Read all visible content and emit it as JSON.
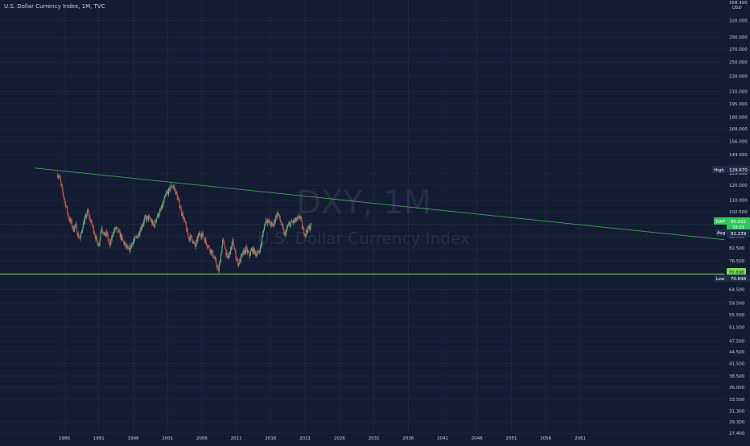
{
  "header": {
    "title": "U.S. Dollar Currency Index, 1M, TVC"
  },
  "watermark": {
    "symbol": "DXY, 1M",
    "name": "U.S. Dollar Currency Index"
  },
  "price_scale": {
    "top_labels": [
      "358.490",
      "USD"
    ],
    "unit": "USD",
    "type": "log"
  },
  "markers": {
    "high": {
      "label": "High",
      "value": "129.670"
    },
    "symbol": {
      "label": "DXY",
      "value": "95.022",
      "sub": "16:23"
    },
    "avg": {
      "label": "Avg",
      "value": "92.239"
    },
    "low": {
      "label": "Low",
      "value": "70.698"
    },
    "low_line": {
      "value": "70.698"
    }
  },
  "colors": {
    "background": "#131c33",
    "grid": "#1f2a45",
    "text": "#c9cedb",
    "trendline": "#46a35c",
    "support_line": "#7cdc57",
    "candle_up": "#5fae88",
    "candle_down": "#d4504e",
    "symbol_badge": "#2fc95a",
    "label_badge": "#1f2b48"
  },
  "chart_data": {
    "type": "candlestick",
    "title": "U.S. Dollar Currency Index, 1M, TVC",
    "x_ticks": [
      "1986",
      "1991",
      "1996",
      "2001",
      "2006",
      "2011",
      "2016",
      "2021",
      "2026",
      "2031",
      "2036",
      "2041",
      "2046",
      "2051",
      "2056",
      "2061"
    ],
    "x_range": [
      1983,
      2084
    ],
    "y_ticks": [
      "27.400",
      "29.300",
      "31.300",
      "33.500",
      "36.000",
      "38.500",
      "41.500",
      "44.500",
      "47.500",
      "51.500",
      "55.500",
      "59.500",
      "64.500",
      "70.698",
      "76.500",
      "82.500",
      "88.500",
      "102.500",
      "110.000",
      "120.000",
      "129.000",
      "144.000",
      "156.000",
      "168.000",
      "180.000",
      "195.000",
      "210.000",
      "230.000",
      "250.000",
      "270.000",
      "290.000",
      "320.000"
    ],
    "y_range": [
      27.4,
      358.49
    ],
    "y_scale": "log",
    "grid": true,
    "close_series": [
      [
        1985.0,
        128
      ],
      [
        1985.3,
        126
      ],
      [
        1985.6,
        118
      ],
      [
        1986.0,
        110
      ],
      [
        1986.3,
        105
      ],
      [
        1986.6,
        99
      ],
      [
        1987.0,
        96
      ],
      [
        1987.3,
        92
      ],
      [
        1987.6,
        95
      ],
      [
        1988.0,
        89
      ],
      [
        1988.3,
        87
      ],
      [
        1988.7,
        95
      ],
      [
        1989.0,
        98
      ],
      [
        1989.4,
        103
      ],
      [
        1989.8,
        97
      ],
      [
        1990.2,
        93
      ],
      [
        1990.6,
        87
      ],
      [
        1991.0,
        84
      ],
      [
        1991.4,
        94
      ],
      [
        1991.8,
        89
      ],
      [
        1992.2,
        90
      ],
      [
        1992.6,
        83
      ],
      [
        1993.0,
        90
      ],
      [
        1993.5,
        93
      ],
      [
        1994.0,
        90
      ],
      [
        1994.5,
        86
      ],
      [
        1995.0,
        83
      ],
      [
        1995.4,
        81
      ],
      [
        1995.8,
        85
      ],
      [
        1996.3,
        87
      ],
      [
        1996.8,
        90
      ],
      [
        1997.2,
        94
      ],
      [
        1997.7,
        98
      ],
      [
        1998.2,
        99
      ],
      [
        1998.6,
        97
      ],
      [
        1999.0,
        94
      ],
      [
        1999.5,
        100
      ],
      [
        2000.0,
        103
      ],
      [
        2000.4,
        108
      ],
      [
        2000.8,
        114
      ],
      [
        2001.2,
        116
      ],
      [
        2001.6,
        120
      ],
      [
        2002.0,
        118
      ],
      [
        2002.4,
        112
      ],
      [
        2002.8,
        106
      ],
      [
        2003.2,
        100
      ],
      [
        2003.6,
        95
      ],
      [
        2004.0,
        88
      ],
      [
        2004.5,
        88
      ],
      [
        2005.0,
        83
      ],
      [
        2005.5,
        89
      ],
      [
        2006.0,
        90
      ],
      [
        2006.5,
        86
      ],
      [
        2007.0,
        83
      ],
      [
        2007.5,
        80
      ],
      [
        2008.0,
        76
      ],
      [
        2008.4,
        72
      ],
      [
        2008.7,
        78
      ],
      [
        2009.0,
        86
      ],
      [
        2009.3,
        84
      ],
      [
        2009.7,
        77
      ],
      [
        2010.2,
        82
      ],
      [
        2010.5,
        86
      ],
      [
        2010.9,
        79
      ],
      [
        2011.3,
        75
      ],
      [
        2011.7,
        78
      ],
      [
        2012.0,
        80
      ],
      [
        2012.4,
        82
      ],
      [
        2012.9,
        79
      ],
      [
        2013.3,
        82
      ],
      [
        2013.8,
        80
      ],
      [
        2014.2,
        80
      ],
      [
        2014.6,
        84
      ],
      [
        2015.0,
        93
      ],
      [
        2015.3,
        98
      ],
      [
        2015.8,
        96
      ],
      [
        2016.3,
        94
      ],
      [
        2016.8,
        100
      ],
      [
        2017.0,
        102
      ],
      [
        2017.5,
        96
      ],
      [
        2018.0,
        89
      ],
      [
        2018.5,
        94
      ],
      [
        2019.0,
        96
      ],
      [
        2019.5,
        97
      ],
      [
        2020.0,
        98
      ],
      [
        2020.3,
        100
      ],
      [
        2020.6,
        93
      ],
      [
        2021.0,
        90
      ],
      [
        2021.3,
        92
      ],
      [
        2021.6,
        93
      ],
      [
        2021.9,
        95
      ]
    ],
    "trendline": {
      "from": [
        1981.6,
        133
      ],
      "to": [
        2084,
        86
      ]
    },
    "support_line": {
      "value": 70.698
    },
    "high": 129.67,
    "low": 70.698,
    "avg": 92.239,
    "last": 95.022
  }
}
